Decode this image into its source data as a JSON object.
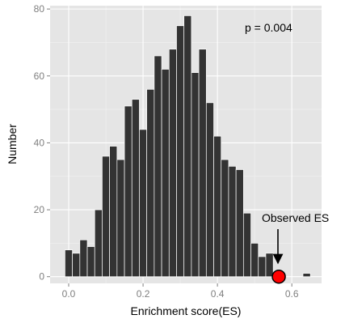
{
  "chart_data": {
    "type": "bar",
    "subtype": "histogram",
    "xlabel": "Enrichment score(ES)",
    "ylabel": "Number",
    "xlim": [
      -0.05,
      0.68
    ],
    "ylim": [
      -2,
      81
    ],
    "x_ticks": [
      "0.0",
      "0.2",
      "0.4",
      "0.6"
    ],
    "x_tick_values": [
      0.0,
      0.2,
      0.4,
      0.6
    ],
    "y_ticks": [
      "0",
      "20",
      "40",
      "60",
      "80"
    ],
    "y_tick_values": [
      0,
      20,
      40,
      60,
      80
    ],
    "bin_width": 0.02,
    "bins": [
      {
        "x": 0.0,
        "count": 8
      },
      {
        "x": 0.02,
        "count": 7
      },
      {
        "x": 0.04,
        "count": 11
      },
      {
        "x": 0.06,
        "count": 9
      },
      {
        "x": 0.08,
        "count": 20
      },
      {
        "x": 0.1,
        "count": 36
      },
      {
        "x": 0.12,
        "count": 39
      },
      {
        "x": 0.14,
        "count": 35
      },
      {
        "x": 0.16,
        "count": 51
      },
      {
        "x": 0.18,
        "count": 53
      },
      {
        "x": 0.2,
        "count": 44
      },
      {
        "x": 0.22,
        "count": 56
      },
      {
        "x": 0.24,
        "count": 66
      },
      {
        "x": 0.26,
        "count": 62
      },
      {
        "x": 0.28,
        "count": 68
      },
      {
        "x": 0.3,
        "count": 75
      },
      {
        "x": 0.32,
        "count": 78
      },
      {
        "x": 0.34,
        "count": 61
      },
      {
        "x": 0.36,
        "count": 68
      },
      {
        "x": 0.38,
        "count": 52
      },
      {
        "x": 0.4,
        "count": 42
      },
      {
        "x": 0.42,
        "count": 35
      },
      {
        "x": 0.44,
        "count": 33
      },
      {
        "x": 0.46,
        "count": 32
      },
      {
        "x": 0.48,
        "count": 19
      },
      {
        "x": 0.5,
        "count": 10
      },
      {
        "x": 0.52,
        "count": 6
      },
      {
        "x": 0.54,
        "count": 7
      },
      {
        "x": 0.56,
        "count": 1
      },
      {
        "x": 0.58,
        "count": 0
      },
      {
        "x": 0.6,
        "count": 0
      },
      {
        "x": 0.62,
        "count": 0
      },
      {
        "x": 0.64,
        "count": 1
      }
    ],
    "observed": {
      "x": 0.565,
      "y": 0,
      "label": "Observed ES",
      "color": "#ff0000"
    },
    "p_value_text": "p = 0.004",
    "bar_color": "#333333",
    "panel_background": "#e5e5e5",
    "grid": true
  }
}
